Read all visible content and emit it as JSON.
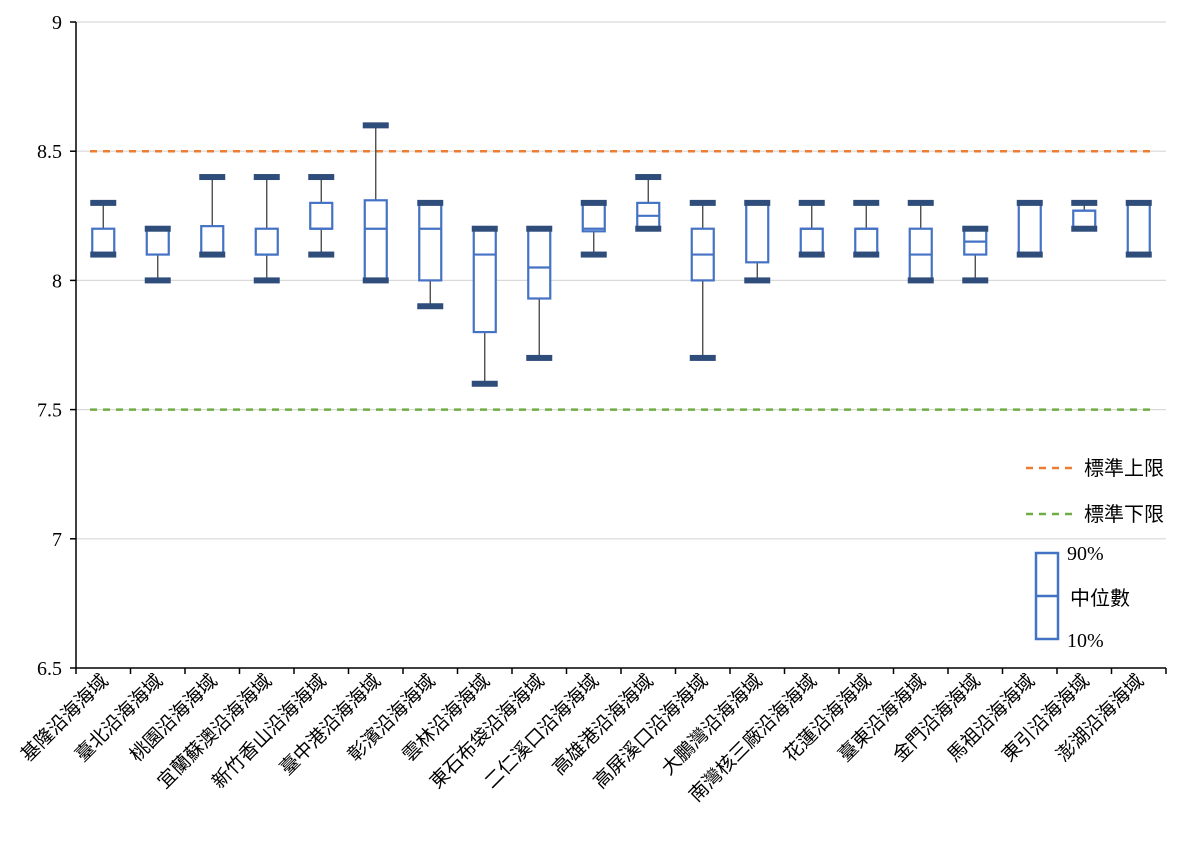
{
  "chart_data": {
    "type": "box",
    "ylim": [
      6.5,
      9
    ],
    "yticks": [
      "6.5",
      "7",
      "7.5",
      "8",
      "8.5",
      "9"
    ],
    "ytick_values": [
      6.5,
      7,
      7.5,
      8,
      8.5,
      9
    ],
    "grid": true,
    "categories": [
      "基隆沿海海域",
      "臺北沿海海域",
      "桃園沿海海域",
      "宜蘭蘇澳沿海海域",
      "新竹香山沿海海域",
      "臺中港沿海海域",
      "彰濱沿海海域",
      "雲林沿海海域",
      "東石布袋沿海海域",
      "二仁溪口沿海海域",
      "高雄港沿海海域",
      "高屏溪口沿海海域",
      "大鵬灣沿海海域",
      "南灣核三廠沿海海域",
      "花蓮沿海海域",
      "臺東沿海海域",
      "金門沿海海域",
      "馬祖沿海海域",
      "東引沿海海域",
      "澎湖沿海海域"
    ],
    "boxes": [
      {
        "min": 8.1,
        "q1": 8.1,
        "median": 8.1,
        "q3": 8.2,
        "max": 8.3
      },
      {
        "min": 8.0,
        "q1": 8.1,
        "median": 8.2,
        "q3": 8.2,
        "max": 8.2
      },
      {
        "min": 8.1,
        "q1": 8.1,
        "median": 8.1,
        "q3": 8.21,
        "max": 8.4
      },
      {
        "min": 8.0,
        "q1": 8.1,
        "median": 8.1,
        "q3": 8.2,
        "max": 8.4
      },
      {
        "min": 8.1,
        "q1": 8.2,
        "median": 8.2,
        "q3": 8.3,
        "max": 8.4
      },
      {
        "min": 8.0,
        "q1": 8.0,
        "median": 8.2,
        "q3": 8.31,
        "max": 8.6
      },
      {
        "min": 7.9,
        "q1": 8.0,
        "median": 8.2,
        "q3": 8.3,
        "max": 8.3
      },
      {
        "min": 7.6,
        "q1": 7.8,
        "median": 8.1,
        "q3": 8.2,
        "max": 8.2
      },
      {
        "min": 7.7,
        "q1": 7.93,
        "median": 8.05,
        "q3": 8.2,
        "max": 8.2
      },
      {
        "min": 8.1,
        "q1": 8.19,
        "median": 8.2,
        "q3": 8.3,
        "max": 8.3
      },
      {
        "min": 8.2,
        "q1": 8.2,
        "median": 8.25,
        "q3": 8.3,
        "max": 8.4
      },
      {
        "min": 7.7,
        "q1": 8.0,
        "median": 8.1,
        "q3": 8.2,
        "max": 8.3
      },
      {
        "min": 8.0,
        "q1": 8.07,
        "median": 8.3,
        "q3": 8.3,
        "max": 8.3
      },
      {
        "min": 8.1,
        "q1": 8.1,
        "median": 8.2,
        "q3": 8.2,
        "max": 8.3
      },
      {
        "min": 8.1,
        "q1": 8.1,
        "median": 8.2,
        "q3": 8.2,
        "max": 8.3
      },
      {
        "min": 8.0,
        "q1": 8.0,
        "median": 8.1,
        "q3": 8.2,
        "max": 8.3
      },
      {
        "min": 8.0,
        "q1": 8.1,
        "median": 8.15,
        "q3": 8.2,
        "max": 8.2
      },
      {
        "min": 8.1,
        "q1": 8.1,
        "median": 8.3,
        "q3": 8.3,
        "max": 8.3
      },
      {
        "min": 8.2,
        "q1": 8.2,
        "median": 8.27,
        "q3": 8.27,
        "max": 8.3
      },
      {
        "min": 8.1,
        "q1": 8.1,
        "median": 8.3,
        "q3": 8.3,
        "max": 8.3
      }
    ],
    "reference_lines": [
      {
        "name": "標準上限",
        "value": 8.5,
        "color": "#ed7d31"
      },
      {
        "name": "標準下限",
        "value": 7.5,
        "color": "#70ad47"
      }
    ],
    "legend": {
      "placement": "right",
      "box_top_label": "90%",
      "box_mid_label": "中位數",
      "box_bottom_label": "10%"
    },
    "colors": {
      "box": "#4472c4",
      "cap": "#2f4d7a",
      "whisker": "#404040",
      "grid": "#d9d9d9",
      "axis": "#000000"
    }
  }
}
